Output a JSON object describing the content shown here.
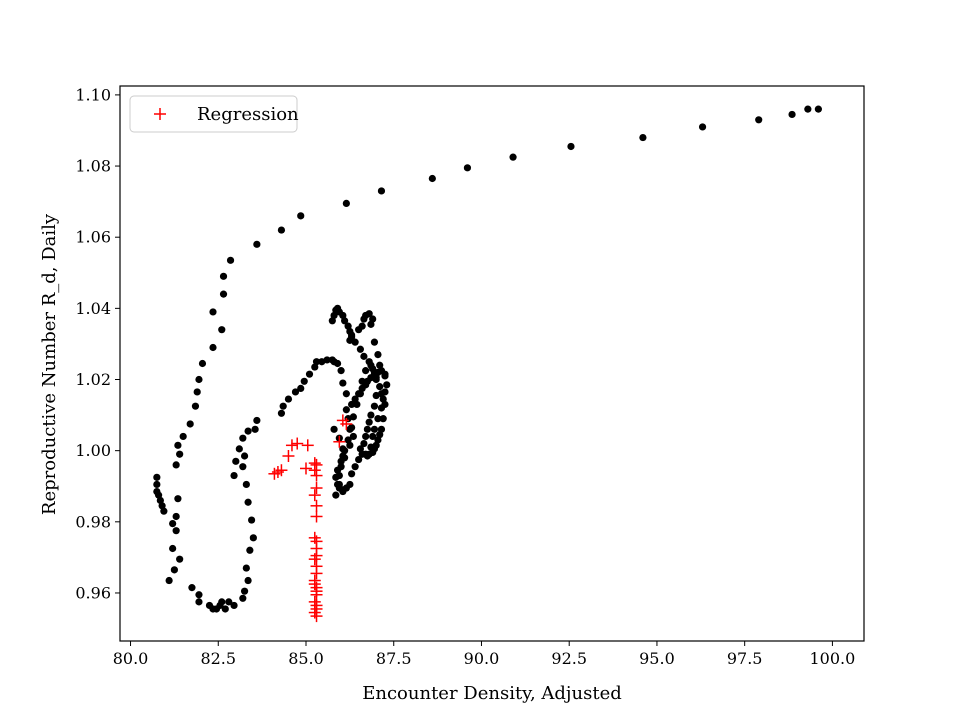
{
  "chart_data": {
    "type": "scatter",
    "xlabel": "Encounter Density, Adjusted",
    "ylabel": "Reproductive Number R_d, Daily",
    "xlim": [
      79.7,
      100.9
    ],
    "ylim": [
      0.9465,
      1.1025
    ],
    "xticks": [
      "80.0",
      "82.5",
      "85.0",
      "87.5",
      "90.0",
      "92.5",
      "95.0",
      "97.5",
      "100.0"
    ],
    "yticks": [
      "0.96",
      "0.98",
      "1.00",
      "1.02",
      "1.04",
      "1.06",
      "1.08",
      "1.10"
    ],
    "grid": false,
    "legend_position": "top-left",
    "colors": {
      "observed": "#000000",
      "regression": "#ff0000"
    },
    "legend": [
      {
        "label": "Regression",
        "marker": "plus",
        "color": "#ff0000"
      }
    ],
    "series": [
      {
        "marker": "dot",
        "color": "#000000",
        "x": [
          99.6,
          99.3,
          98.85,
          97.9,
          96.3,
          94.6,
          92.55,
          90.9,
          89.6,
          88.6,
          87.15,
          86.15,
          84.85,
          84.3,
          83.6,
          82.85,
          82.65,
          82.65,
          82.6,
          82.35,
          82.35,
          82.05,
          81.95,
          81.9,
          81.85,
          81.7,
          81.5,
          81.35,
          81.4,
          81.3,
          81.35,
          81.3,
          81.2,
          81.3,
          81.4,
          81.2,
          81.25,
          81.1,
          80.9,
          80.95,
          80.85,
          80.8,
          80.75,
          80.75,
          80.75,
          81.75,
          81.95,
          81.95,
          82.25,
          82.35,
          82.45,
          82.55,
          82.6,
          82.7,
          82.8,
          82.95,
          83.2,
          83.25,
          83.35,
          83.3,
          83.4,
          83.5,
          83.45,
          83.35,
          83.3,
          83.2,
          83.25,
          82.95,
          83.0,
          83.1,
          83.2,
          83.35,
          83.55,
          83.6,
          84.3,
          84.35,
          84.5,
          84.7,
          84.85,
          84.95,
          85.1,
          85.25,
          85.3,
          85.45,
          85.6,
          85.75,
          85.8,
          85.9,
          86.0,
          86.05,
          86.15,
          86.25,
          86.3,
          86.5,
          86.6,
          86.65,
          86.7,
          86.8,
          86.9,
          86.85,
          86.95,
          87.05,
          87.1,
          87.25,
          87.3,
          87.25,
          87.2,
          87.15,
          87.05,
          86.95,
          86.9,
          86.85,
          86.7,
          86.75,
          86.8,
          86.9,
          86.95,
          87.0,
          87.05,
          87.1,
          87.15,
          87.2,
          87.25,
          87.15,
          87.0,
          86.9,
          86.8,
          86.65,
          86.55,
          86.4,
          86.3,
          86.25,
          86.2,
          86.1,
          86.05,
          85.95,
          85.9,
          85.85,
          85.8,
          85.75,
          85.8,
          85.95,
          86.05,
          86.1,
          86.0,
          85.95,
          85.95,
          86.05,
          85.95,
          85.9,
          85.85,
          86.05,
          86.15,
          86.25,
          86.3,
          86.4,
          86.5,
          86.6,
          86.55,
          86.65,
          86.7,
          86.75,
          86.8,
          86.85,
          86.95,
          87.0,
          87.1,
          87.0,
          86.95,
          86.85,
          86.7,
          86.6,
          86.55,
          86.45,
          86.35,
          86.25,
          86.2,
          86.1,
          86.0,
          85.9,
          85.85,
          86.05,
          86.25,
          86.35,
          86.3,
          86.2,
          86.15,
          86.3,
          86.4,
          86.5,
          86.6,
          86.7,
          86.75,
          86.85,
          86.95,
          87.05,
          87.15,
          87.25
        ],
        "y": [
          1.096,
          1.096,
          1.0945,
          1.093,
          1.091,
          1.088,
          1.0855,
          1.0825,
          1.0795,
          1.0765,
          1.073,
          1.0695,
          1.066,
          1.062,
          1.058,
          1.0535,
          1.049,
          1.044,
          1.034,
          1.039,
          1.029,
          1.0245,
          1.02,
          1.0165,
          1.0125,
          1.0075,
          1.004,
          1.0015,
          0.999,
          0.996,
          0.9865,
          0.9815,
          0.9795,
          0.9775,
          0.9695,
          0.9725,
          0.9665,
          0.9635,
          0.9845,
          0.983,
          0.986,
          0.9875,
          0.9885,
          0.9905,
          0.9925,
          0.9615,
          0.9595,
          0.9575,
          0.9565,
          0.9555,
          0.9555,
          0.9565,
          0.9575,
          0.9555,
          0.9575,
          0.9565,
          0.9585,
          0.9605,
          0.9635,
          0.967,
          0.972,
          0.9755,
          0.9805,
          0.9855,
          0.9905,
          0.9955,
          0.9985,
          0.993,
          0.997,
          1.0005,
          1.0035,
          1.0055,
          1.006,
          1.0085,
          1.0105,
          1.0125,
          1.0145,
          1.0165,
          1.0175,
          1.0195,
          1.0215,
          1.0235,
          1.025,
          1.025,
          1.0255,
          1.0255,
          1.025,
          1.0245,
          1.0225,
          1.019,
          1.016,
          1.031,
          1.0325,
          1.034,
          1.035,
          1.037,
          1.038,
          1.0385,
          1.037,
          1.0355,
          1.0305,
          1.027,
          1.024,
          1.021,
          1.0185,
          1.0165,
          1.0145,
          1.012,
          1.009,
          1.006,
          1.004,
          1.001,
          0.999,
          0.9985,
          0.999,
          0.9995,
          1.0005,
          1.0015,
          1.003,
          1.0045,
          1.006,
          1.009,
          1.013,
          1.016,
          1.02,
          1.023,
          1.025,
          1.0265,
          1.0285,
          1.0305,
          1.032,
          1.0335,
          1.035,
          1.0365,
          1.038,
          1.039,
          1.04,
          1.0395,
          1.038,
          1.0365,
          1.006,
          1.0035,
          1.0005,
          0.998,
          0.9955,
          0.993,
          0.9905,
          0.989,
          0.9895,
          0.9905,
          0.9875,
          0.9885,
          0.9895,
          0.9905,
          0.9935,
          0.9955,
          0.9975,
          0.999,
          1.0005,
          1.002,
          1.004,
          1.006,
          1.008,
          1.01,
          1.0125,
          1.0155,
          1.018,
          1.0205,
          1.022,
          1.024,
          1.0225,
          1.0195,
          1.016,
          1.013,
          1.0095,
          1.006,
          1.003,
          1.0,
          0.997,
          0.9945,
          0.9925,
          0.9985,
          1.0015,
          1.004,
          1.0065,
          1.009,
          1.0115,
          1.013,
          1.0145,
          1.016,
          1.0175,
          1.0185,
          1.0195,
          1.0205,
          1.0215,
          1.022,
          1.0225,
          1.0215
        ]
      },
      {
        "name": "Regression",
        "marker": "plus",
        "color": "#ff0000",
        "x": [
          84.1,
          84.2,
          84.3,
          84.5,
          84.6,
          84.75,
          85.0,
          85.05,
          85.25,
          85.3,
          85.25,
          85.3,
          85.3,
          85.25,
          85.3,
          85.3,
          85.25,
          85.3,
          85.3,
          85.3,
          85.25,
          85.3,
          85.3,
          85.25,
          85.3,
          85.3,
          85.25,
          85.3,
          85.3,
          85.25,
          85.3,
          85.3,
          85.25,
          85.95,
          86.05,
          86.15
        ],
        "y": [
          0.9935,
          0.994,
          0.9945,
          0.9985,
          1.0015,
          1.002,
          0.995,
          1.0015,
          0.9965,
          0.996,
          0.9945,
          0.993,
          0.9895,
          0.9875,
          0.9845,
          0.9815,
          0.9755,
          0.9745,
          0.9725,
          0.9705,
          0.9695,
          0.9675,
          0.9655,
          0.9635,
          0.9615,
          0.9595,
          0.9575,
          0.9565,
          0.9555,
          0.9545,
          0.9535,
          0.9605,
          0.9625,
          1.0025,
          1.0085,
          1.0075
        ]
      }
    ]
  }
}
